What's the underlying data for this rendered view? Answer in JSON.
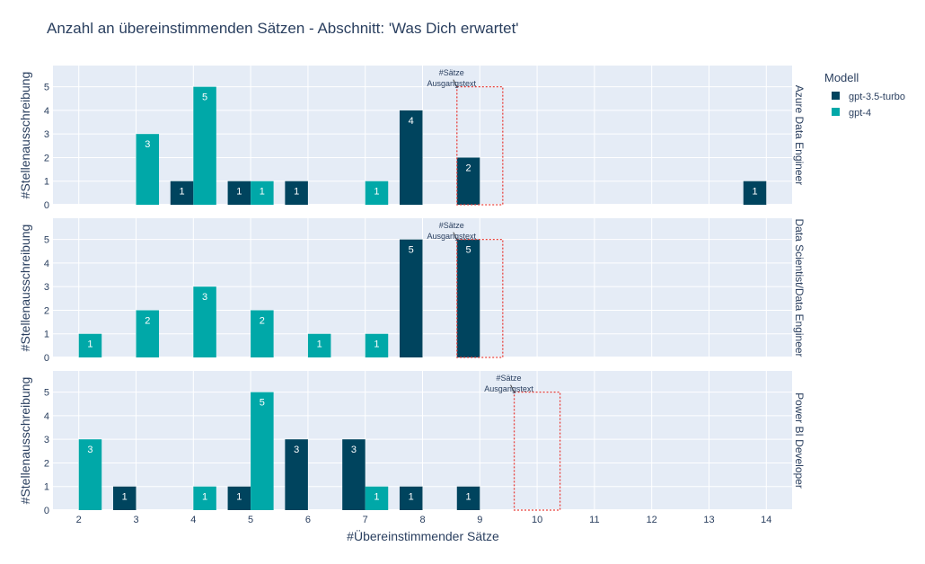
{
  "chart_data": {
    "type": "bar",
    "title": "Anzahl an übereinstimmenden Sätzen - Abschnitt: 'Was Dich erwartet'",
    "xlabel": "#Übereinstimmender Sätze",
    "ylabel": "#Stellenausschreibung",
    "x_ticks": [
      2,
      3,
      4,
      5,
      6,
      7,
      8,
      9,
      10,
      11,
      12,
      13,
      14
    ],
    "xlim": [
      1.55,
      14.45
    ],
    "ylim": [
      0,
      5.9
    ],
    "y_ticks": [
      0,
      1,
      2,
      3,
      4,
      5
    ],
    "grid": true,
    "legend": {
      "title": "Modell",
      "position": "top-right",
      "entries": [
        "gpt-3.5-turbo",
        "gpt-4"
      ]
    },
    "series_colors": {
      "gpt-3.5-turbo": "#00445e",
      "gpt-4": "#00a8a8"
    },
    "annotation_color": "#e8413c",
    "facets": [
      {
        "label": "Azure Data Engineer",
        "annotation": {
          "lines": [
            "#Sätze",
            "Ausgangstext"
          ],
          "x": 9,
          "width": 0.8,
          "height": 5
        },
        "series": [
          {
            "name": "gpt-3.5-turbo",
            "points": [
              [
                4,
                1
              ],
              [
                5,
                1
              ],
              [
                6,
                1
              ],
              [
                8,
                4
              ],
              [
                9,
                2
              ],
              [
                14,
                1
              ]
            ]
          },
          {
            "name": "gpt-4",
            "points": [
              [
                3,
                3
              ],
              [
                4,
                5
              ],
              [
                5,
                1
              ],
              [
                7,
                1
              ]
            ]
          }
        ]
      },
      {
        "label": "Data Scientist/Data Engineer",
        "annotation": {
          "lines": [
            "#Sätze",
            "Ausgangstext"
          ],
          "x": 9,
          "width": 0.8,
          "height": 5
        },
        "series": [
          {
            "name": "gpt-3.5-turbo",
            "points": [
              [
                8,
                5
              ],
              [
                9,
                5
              ]
            ]
          },
          {
            "name": "gpt-4",
            "points": [
              [
                2,
                1
              ],
              [
                3,
                2
              ],
              [
                4,
                3
              ],
              [
                5,
                2
              ],
              [
                6,
                1
              ],
              [
                7,
                1
              ]
            ]
          }
        ]
      },
      {
        "label": "Power BI Developer",
        "annotation": {
          "lines": [
            "#Sätze",
            "Ausgangstext"
          ],
          "x": 10,
          "width": 0.8,
          "height": 5
        },
        "series": [
          {
            "name": "gpt-3.5-turbo",
            "points": [
              [
                3,
                1
              ],
              [
                5,
                1
              ],
              [
                6,
                3
              ],
              [
                7,
                3
              ],
              [
                8,
                1
              ],
              [
                9,
                1
              ]
            ]
          },
          {
            "name": "gpt-4",
            "points": [
              [
                2,
                3
              ],
              [
                4,
                1
              ],
              [
                5,
                5
              ],
              [
                7,
                1
              ]
            ]
          }
        ]
      }
    ]
  }
}
